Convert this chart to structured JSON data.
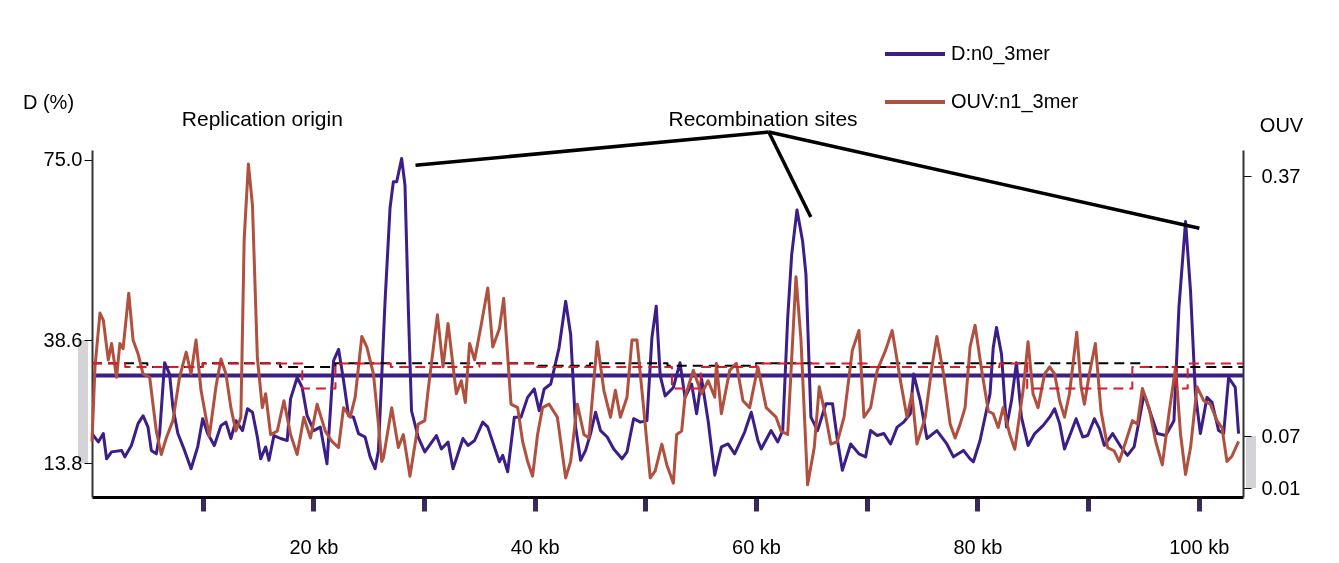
{
  "chart_data": {
    "type": "line",
    "ylabel": "D (%)",
    "y2label": "OUV",
    "annotations": [
      "Replication origin",
      "Recombination sites"
    ],
    "xlim": [
      0,
      104
    ],
    "xticks": [
      {
        "value": 10,
        "label": null
      },
      {
        "value": 20,
        "label": "20 kb"
      },
      {
        "value": 30,
        "label": null
      },
      {
        "value": 40,
        "label": "40 kb"
      },
      {
        "value": 50,
        "label": null
      },
      {
        "value": 60,
        "label": "60 kb"
      },
      {
        "value": 70,
        "label": null
      },
      {
        "value": 80,
        "label": "80 kb"
      },
      {
        "value": 90,
        "label": null
      },
      {
        "value": 100,
        "label": "100 kb"
      }
    ],
    "ylim": [
      7,
      77
    ],
    "yticks": [
      13.8,
      38.6,
      {
        "value": 75,
        "label": "75.0"
      }
    ],
    "y2lim": [
      0,
      0.4
    ],
    "y2ticks": [
      0.01,
      0.07,
      0.37
    ],
    "legend": "top right",
    "grid": false,
    "ref_lines": [
      {
        "axis": "y",
        "value": 31.5,
        "color": "#3b1e87"
      }
    ],
    "series": [
      {
        "name": "D:n0_3mer",
        "color": "#3b1e87",
        "x": [
          0,
          0.57,
          1.02,
          1.32,
          1.77,
          2.67,
          2.97,
          3.56,
          4.16,
          4.61,
          5.06,
          5.36,
          5.81,
          6.11,
          6.56,
          7.01,
          7.31,
          7.76,
          8.36,
          8.95,
          9.55,
          10,
          10.45,
          11.05,
          11.65,
          12.1,
          12.55,
          13,
          13.6,
          14.05,
          14.5,
          14.94,
          15.24,
          15.69,
          15.99,
          16.44,
          17.04,
          17.64,
          17.94,
          18.54,
          18.99,
          19.44,
          20.04,
          20.63,
          21.23,
          21.83,
          22.28,
          22.73,
          23.18,
          23.63,
          24.08,
          24.68,
          25.13,
          25.58,
          25.88,
          26.48,
          26.93,
          27.23,
          27.53,
          27.98,
          28.28,
          28.58,
          28.87,
          29.47,
          30.07,
          31.12,
          31.57,
          32.17,
          32.62,
          33.52,
          33.97,
          34.57,
          35.31,
          35.76,
          36.36,
          36.81,
          37.11,
          37.56,
          38.16,
          38.76,
          39.36,
          39.96,
          40.41,
          40.86,
          41.45,
          42.2,
          42.8,
          43.25,
          43.7,
          44.15,
          44.6,
          45.05,
          45.5,
          45.95,
          46.55,
          47.14,
          47.89,
          48.34,
          48.94,
          49.54,
          50.14,
          50.59,
          50.98,
          51.34,
          51.79,
          52.53,
          53.13,
          53.58,
          54.18,
          54.63,
          55.08,
          55.67,
          56.27,
          56.87,
          57.47,
          58.07,
          58.97,
          59.57,
          60.17,
          60.47,
          61.36,
          61.96,
          62.41,
          62.86,
          63.22,
          63.7,
          64.21,
          64.51,
          64.96,
          65.56,
          66.31,
          66.91,
          67.36,
          67.8,
          68.55,
          69.3,
          69.9,
          70.35,
          70.95,
          71.55,
          72.15,
          72.75,
          73.34,
          73.94,
          74.24,
          74.84,
          75.44,
          76.34,
          77.24,
          77.84,
          78.74,
          79.34,
          79.64,
          80.24,
          80.69,
          81.14,
          81.43,
          81.73,
          82.18,
          82.63,
          83.08,
          83.53,
          83.98,
          84.58,
          85.18,
          85.93,
          86.53,
          86.98,
          87.43,
          87.87,
          88.47,
          88.92,
          89.52,
          89.97,
          90.57,
          91.02,
          91.47,
          92.22,
          92.97,
          93.56,
          94.16,
          94.61,
          95.06,
          95.66,
          96.26,
          97.01,
          97.76,
          98.21,
          98.81,
          99.26,
          99.7,
          100.15,
          100.75,
          101.2,
          101.8,
          102.25,
          102.7,
          103.3,
          103.6
        ],
        "values": [
          19.8,
          18.1,
          19.8,
          14.7,
          16.1,
          16.4,
          15.1,
          17.4,
          21.8,
          23.4,
          21.1,
          16.4,
          15.7,
          19.8,
          34.1,
          31.8,
          25.1,
          19.8,
          16.4,
          12.7,
          17.1,
          22.8,
          19.8,
          17.4,
          21.4,
          22.1,
          18.8,
          22.4,
          20.4,
          24.8,
          24.1,
          19.1,
          14.7,
          17.1,
          14.4,
          19.4,
          18.8,
          18.4,
          26.8,
          31.1,
          29.1,
          23.4,
          20.4,
          21.1,
          13.7,
          34.5,
          36.8,
          30.5,
          23.4,
          23.1,
          19.8,
          19.1,
          15.1,
          12.7,
          16.4,
          46.5,
          65.3,
          70.6,
          70.6,
          75.3,
          69.9,
          45.2,
          24.4,
          19.1,
          16.1,
          19.4,
          16.7,
          18.1,
          12.7,
          18.8,
          17.4,
          18.4,
          22.1,
          21.1,
          17.1,
          14.1,
          15.4,
          12.1,
          23.1,
          23.1,
          27.1,
          28.8,
          24.4,
          28.8,
          29.8,
          37.1,
          46.5,
          39.8,
          21.1,
          14.4,
          16.4,
          19.8,
          24.1,
          20.4,
          19.1,
          16.7,
          14.7,
          16.1,
          22.8,
          22.1,
          22.4,
          39.1,
          45.5,
          31.5,
          27.4,
          29.1,
          34.1,
          27.1,
          29.8,
          23.8,
          30.8,
          22.4,
          11.4,
          17.1,
          17.7,
          15.7,
          20.1,
          24.1,
          18.4,
          16.7,
          20.4,
          18.1,
          20.4,
          43.1,
          55.9,
          64.9,
          58.6,
          51.9,
          23.1,
          20.4,
          25.8,
          25.8,
          18.4,
          12.4,
          17.7,
          15.7,
          15.1,
          20.4,
          19.4,
          19.8,
          17.7,
          21.1,
          22.1,
          23.8,
          31.8,
          26.4,
          18.8,
          20.4,
          17.7,
          15.1,
          16.4,
          14.7,
          14.1,
          18.4,
          23.1,
          27.8,
          37.1,
          41.2,
          35.8,
          21.1,
          26.4,
          34.1,
          23.1,
          17.4,
          19.8,
          21.4,
          23.1,
          24.8,
          21.8,
          16.7,
          20.1,
          22.8,
          19.1,
          19.4,
          22.8,
          20.8,
          17.4,
          19.8,
          17.1,
          15.4,
          17.1,
          22.4,
          27.8,
          23.8,
          19.8,
          19.4,
          22.4,
          45.2,
          62.6,
          48.5,
          27.8,
          19.8,
          27.1,
          26.1,
          20.4,
          19.8,
          31.1,
          29.1,
          19.8
        ]
      },
      {
        "name": "OUV:n1_3mer",
        "color": "#b0503f",
        "axis": "y2",
        "x": [
          0,
          0.27,
          0.72,
          1.02,
          1.47,
          1.77,
          2.22,
          2.52,
          2.81,
          3.32,
          3.71,
          4.16,
          4.61,
          5.21,
          5.81,
          6.26,
          6.71,
          7.31,
          7.91,
          8.51,
          8.95,
          9.4,
          9.85,
          10.6,
          11.2,
          11.65,
          12.1,
          12.55,
          13,
          13.45,
          13.75,
          14.13,
          14.5,
          14.94,
          15.39,
          15.69,
          16.14,
          16.74,
          17.34,
          17.94,
          18.54,
          19.14,
          19.74,
          20.34,
          21.08,
          21.68,
          22.28,
          22.73,
          23.33,
          23.78,
          24.38,
          24.83,
          25.43,
          25.88,
          26.18,
          26.33,
          27.08,
          27.68,
          28.13,
          28.73,
          29.47,
          30.07,
          30.37,
          31.21,
          31.72,
          32.17,
          32.92,
          33.37,
          33.73,
          34.12,
          34.57,
          35.16,
          35.76,
          36.21,
          36.81,
          37.2,
          37.86,
          38.46,
          38.91,
          39.36,
          39.81,
          40.26,
          40.71,
          41.3,
          42.05,
          42.8,
          43.25,
          43.85,
          44.45,
          44.9,
          45.65,
          46.25,
          46.85,
          47.29,
          47.74,
          48.34,
          48.79,
          49.24,
          49.84,
          50.44,
          50.89,
          51.49,
          51.94,
          52.53,
          52.83,
          53.28,
          53.58,
          54.33,
          55.08,
          55.67,
          56.27,
          56.42,
          56.87,
          57.62,
          58.22,
          58.82,
          59.42,
          60.17,
          60.92,
          61.81,
          62.26,
          62.86,
          63.31,
          63.61,
          64.06,
          64.66,
          65.26,
          65.71,
          66.31,
          66.76,
          67.36,
          67.95,
          68.7,
          69.3,
          69.75,
          70.35,
          70.95,
          71.7,
          72.3,
          73.05,
          73.64,
          74.09,
          74.54,
          75.29,
          75.89,
          76.34,
          76.94,
          77.54,
          77.99,
          78.44,
          78.89,
          79.34,
          79.79,
          80.39,
          80.99,
          81.43,
          81.88,
          82.33,
          82.93,
          83.38,
          84.13,
          84.58,
          85.03,
          85.48,
          86.08,
          86.53,
          86.98,
          87.43,
          87.87,
          88.32,
          88.98,
          89.37,
          89.67,
          90.12,
          90.66,
          91.17,
          91.77,
          92.37,
          92.81,
          93.41,
          94.01,
          94.46,
          94.91,
          95.51,
          96.11,
          96.71,
          97.31,
          97.91,
          98.36,
          98.81,
          99.26,
          99.85,
          100.45,
          101.05,
          101.65,
          102.1,
          102.55,
          103,
          103.6
        ],
        "values": [
          0.064,
          0.15,
          0.212,
          0.204,
          0.158,
          0.177,
          0.138,
          0.177,
          0.171,
          0.235,
          0.181,
          0.165,
          0.142,
          0.138,
          0.076,
          0.049,
          0.068,
          0.088,
          0.138,
          0.167,
          0.142,
          0.181,
          0.123,
          0.07,
          0.127,
          0.159,
          0.142,
          0.103,
          0.076,
          0.092,
          0.297,
          0.384,
          0.336,
          0.161,
          0.103,
          0.119,
          0.072,
          0.076,
          0.111,
          0.072,
          0.049,
          0.092,
          0.068,
          0.107,
          0.076,
          0.064,
          0.057,
          0.103,
          0.092,
          0.115,
          0.185,
          0.173,
          0.142,
          0.084,
          0.041,
          0.045,
          0.103,
          0.057,
          0.072,
          0.024,
          0.084,
          0.088,
          0.123,
          0.21,
          0.15,
          0.2,
          0.119,
          0.134,
          0.109,
          0.177,
          0.158,
          0.198,
          0.241,
          0.173,
          0.194,
          0.229,
          0.107,
          0.103,
          0.064,
          0.041,
          0.024,
          0.072,
          0.103,
          0.107,
          0.092,
          0.022,
          0.041,
          0.107,
          0.072,
          0.068,
          0.179,
          0.123,
          0.092,
          0.123,
          0.092,
          0.115,
          0.181,
          0.181,
          0.103,
          0.022,
          0.03,
          0.061,
          0.037,
          0.016,
          0.072,
          0.076,
          0.115,
          0.146,
          0.119,
          0.134,
          0.115,
          0.154,
          0.096,
          0.146,
          0.154,
          0.111,
          0.103,
          0.15,
          0.103,
          0.092,
          0.076,
          0.072,
          0.181,
          0.254,
          0.181,
          0.014,
          0.057,
          0.127,
          0.092,
          0.061,
          0.064,
          0.092,
          0.169,
          0.192,
          0.092,
          0.103,
          0.146,
          0.169,
          0.192,
          0.134,
          0.092,
          0.119,
          0.061,
          0.092,
          0.15,
          0.185,
          0.142,
          0.084,
          0.068,
          0.084,
          0.103,
          0.173,
          0.198,
          0.146,
          0.099,
          0.096,
          0.08,
          0.103,
          0.072,
          0.055,
          0.123,
          0.179,
          0.119,
          0.103,
          0.142,
          0.15,
          0.142,
          0.111,
          0.092,
          0.119,
          0.19,
          0.127,
          0.107,
          0.142,
          0.177,
          0.099,
          0.057,
          0.053,
          0.041,
          0.064,
          0.088,
          0.084,
          0.125,
          0.103,
          0.064,
          0.037,
          0.096,
          0.15,
          0.072,
          0.026,
          0.057,
          0.127,
          0.111,
          0.107,
          0.088,
          0.08,
          0.041,
          0.047,
          0.064
        ]
      },
      {
        "type": "step",
        "color": "#000000",
        "line_style": "dashed",
        "x": [
          0,
          5,
          10,
          17,
          22,
          27,
          35,
          40,
          45,
          52,
          60,
          65,
          72,
          80,
          85,
          95,
          104
        ],
        "values": [
          34,
          33.2,
          34,
          33.2,
          34,
          34,
          34,
          33.5,
          34,
          33.5,
          34,
          33.2,
          34,
          34,
          34,
          33.2,
          33.2
        ]
      },
      {
        "type": "step",
        "color": "#e0182d",
        "line_style": "dashed",
        "axis": "y2",
        "x": [
          0,
          3,
          10,
          19,
          22,
          27,
          35,
          40,
          50,
          52.4,
          55,
          60,
          70,
          82,
          84.5,
          92,
          94,
          98,
          99,
          104
        ],
        "values": [
          0.154,
          0.15,
          0.154,
          0.125,
          0.154,
          0.15,
          0.154,
          0.15,
          0.15,
          0.125,
          0.15,
          0.154,
          0.15,
          0.154,
          0.125,
          0.125,
          0.15,
          0.125,
          0.154,
          0.154
        ]
      }
    ]
  }
}
